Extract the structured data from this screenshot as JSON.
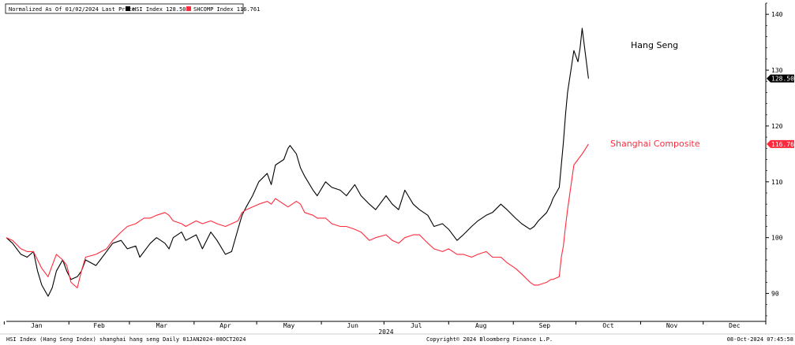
{
  "legend": {
    "prefix": "Normalized As Of 01/02/2024  Last Price",
    "items": [
      {
        "label": "HSI Index  128.50",
        "color": "#000000"
      },
      {
        "label": "SHCOMP Index  116.761",
        "color": "#ff2a3c"
      }
    ]
  },
  "annotations": {
    "hsi": "Hang Seng",
    "shcomp": "Shanghai Composite"
  },
  "footer": {
    "left": "HSI Index (Hang Seng Index) shanghai hang seng  Daily 01JAN2024-08OCT2024",
    "center": "Copyright© 2024 Bloomberg Finance L.P.",
    "right": "08-Oct-2024 07:45:58"
  },
  "chart_data": {
    "type": "line",
    "xlabel": "2024",
    "x_ticks": [
      "Jan",
      "Feb",
      "Mar",
      "Apr",
      "May",
      "Jun",
      "Jul",
      "Aug",
      "Sep",
      "Oct",
      "Nov",
      "Dec"
    ],
    "x_range": [
      "2024-01-02",
      "2024-12-31"
    ],
    "ylim": [
      85,
      142
    ],
    "y_ticks": [
      90,
      100,
      110,
      120,
      130,
      140
    ],
    "y_axis_side": "right",
    "grid": false,
    "legend_position": "top-left",
    "last_value_labels": [
      {
        "value": 128.5,
        "text": "128.50",
        "color": "#000000"
      },
      {
        "value": 116.761,
        "text": "116.761",
        "color": "#ff2a3c"
      }
    ],
    "series": [
      {
        "name": "HSI Index",
        "color": "#000000",
        "points": [
          [
            "2024-01-02",
            100
          ],
          [
            "2024-01-05",
            99
          ],
          [
            "2024-01-09",
            97
          ],
          [
            "2024-01-12",
            96.5
          ],
          [
            "2024-01-15",
            97.5
          ],
          [
            "2024-01-17",
            94
          ],
          [
            "2024-01-19",
            91.5
          ],
          [
            "2024-01-22",
            89.5
          ],
          [
            "2024-01-24",
            91
          ],
          [
            "2024-01-26",
            94
          ],
          [
            "2024-01-29",
            96
          ],
          [
            "2024-01-31",
            94
          ],
          [
            "2024-02-02",
            92.5
          ],
          [
            "2024-02-05",
            93
          ],
          [
            "2024-02-07",
            94
          ],
          [
            "2024-02-09",
            96
          ],
          [
            "2024-02-14",
            95
          ],
          [
            "2024-02-19",
            97.5
          ],
          [
            "2024-02-22",
            99
          ],
          [
            "2024-02-26",
            99.5
          ],
          [
            "2024-02-29",
            98
          ],
          [
            "2024-03-04",
            98.5
          ],
          [
            "2024-03-06",
            96.5
          ],
          [
            "2024-03-08",
            97.5
          ],
          [
            "2024-03-11",
            99
          ],
          [
            "2024-03-14",
            100
          ],
          [
            "2024-03-18",
            99
          ],
          [
            "2024-03-20",
            98
          ],
          [
            "2024-03-22",
            100
          ],
          [
            "2024-03-26",
            101
          ],
          [
            "2024-03-28",
            99.5
          ],
          [
            "2024-04-02",
            100.5
          ],
          [
            "2024-04-05",
            98
          ],
          [
            "2024-04-09",
            101
          ],
          [
            "2024-04-12",
            99.5
          ],
          [
            "2024-04-16",
            97
          ],
          [
            "2024-04-19",
            97.5
          ],
          [
            "2024-04-22",
            101.5
          ],
          [
            "2024-04-24",
            104
          ],
          [
            "2024-04-26",
            105.5
          ],
          [
            "2024-04-29",
            107.5
          ],
          [
            "2024-05-02",
            110
          ],
          [
            "2024-05-06",
            111.5
          ],
          [
            "2024-05-08",
            109.5
          ],
          [
            "2024-05-10",
            113
          ],
          [
            "2024-05-14",
            114
          ],
          [
            "2024-05-16",
            116
          ],
          [
            "2024-05-17",
            116.5
          ],
          [
            "2024-05-20",
            115
          ],
          [
            "2024-05-22",
            112.5
          ],
          [
            "2024-05-24",
            111
          ],
          [
            "2024-05-28",
            108.5
          ],
          [
            "2024-05-30",
            107.5
          ],
          [
            "2024-06-03",
            110
          ],
          [
            "2024-06-06",
            109
          ],
          [
            "2024-06-10",
            108.5
          ],
          [
            "2024-06-13",
            107.5
          ],
          [
            "2024-06-17",
            109.5
          ],
          [
            "2024-06-20",
            107.5
          ],
          [
            "2024-06-24",
            106
          ],
          [
            "2024-06-27",
            105
          ],
          [
            "2024-07-02",
            107.5
          ],
          [
            "2024-07-05",
            106
          ],
          [
            "2024-07-08",
            105
          ],
          [
            "2024-07-11",
            108.5
          ],
          [
            "2024-07-15",
            106
          ],
          [
            "2024-07-18",
            105
          ],
          [
            "2024-07-22",
            104
          ],
          [
            "2024-07-25",
            102
          ],
          [
            "2024-07-29",
            102.5
          ],
          [
            "2024-08-01",
            101.5
          ],
          [
            "2024-08-05",
            99.5
          ],
          [
            "2024-08-08",
            100.5
          ],
          [
            "2024-08-12",
            102
          ],
          [
            "2024-08-15",
            103
          ],
          [
            "2024-08-19",
            104
          ],
          [
            "2024-08-22",
            104.5
          ],
          [
            "2024-08-26",
            106
          ],
          [
            "2024-08-29",
            105
          ],
          [
            "2024-09-02",
            103.5
          ],
          [
            "2024-09-05",
            102.5
          ],
          [
            "2024-09-09",
            101.5
          ],
          [
            "2024-09-11",
            102
          ],
          [
            "2024-09-13",
            103
          ],
          [
            "2024-09-17",
            104.5
          ],
          [
            "2024-09-19",
            106
          ],
          [
            "2024-09-20",
            107
          ],
          [
            "2024-09-23",
            109
          ],
          [
            "2024-09-24",
            113
          ],
          [
            "2024-09-25",
            117
          ],
          [
            "2024-09-26",
            122
          ],
          [
            "2024-09-27",
            126
          ],
          [
            "2024-09-30",
            133.5
          ],
          [
            "2024-10-02",
            131.5
          ],
          [
            "2024-10-03",
            134
          ],
          [
            "2024-10-04",
            137.5
          ],
          [
            "2024-10-07",
            128.5
          ]
        ]
      },
      {
        "name": "SHCOMP Index",
        "color": "#ff2a3c",
        "points": [
          [
            "2024-01-02",
            100
          ],
          [
            "2024-01-05",
            99.5
          ],
          [
            "2024-01-09",
            98
          ],
          [
            "2024-01-12",
            97.5
          ],
          [
            "2024-01-15",
            97.5
          ],
          [
            "2024-01-17",
            96
          ],
          [
            "2024-01-19",
            94.5
          ],
          [
            "2024-01-22",
            93
          ],
          [
            "2024-01-24",
            95
          ],
          [
            "2024-01-26",
            97
          ],
          [
            "2024-01-29",
            96
          ],
          [
            "2024-01-31",
            95
          ],
          [
            "2024-02-02",
            92
          ],
          [
            "2024-02-05",
            91
          ],
          [
            "2024-02-07",
            94
          ],
          [
            "2024-02-09",
            96.5
          ],
          [
            "2024-02-14",
            97
          ],
          [
            "2024-02-19",
            98
          ],
          [
            "2024-02-22",
            99.5
          ],
          [
            "2024-02-26",
            101
          ],
          [
            "2024-02-29",
            102
          ],
          [
            "2024-03-04",
            102.5
          ],
          [
            "2024-03-06",
            103
          ],
          [
            "2024-03-08",
            103.5
          ],
          [
            "2024-03-11",
            103.5
          ],
          [
            "2024-03-14",
            104
          ],
          [
            "2024-03-18",
            104.5
          ],
          [
            "2024-03-20",
            104
          ],
          [
            "2024-03-22",
            103
          ],
          [
            "2024-03-26",
            102.5
          ],
          [
            "2024-03-28",
            102
          ],
          [
            "2024-04-02",
            103
          ],
          [
            "2024-04-05",
            102.5
          ],
          [
            "2024-04-09",
            103
          ],
          [
            "2024-04-12",
            102.5
          ],
          [
            "2024-04-16",
            102
          ],
          [
            "2024-04-19",
            102.5
          ],
          [
            "2024-04-22",
            103
          ],
          [
            "2024-04-24",
            104.5
          ],
          [
            "2024-04-26",
            105
          ],
          [
            "2024-04-29",
            105.5
          ],
          [
            "2024-05-02",
            106
          ],
          [
            "2024-05-06",
            106.5
          ],
          [
            "2024-05-08",
            106
          ],
          [
            "2024-05-10",
            107
          ],
          [
            "2024-05-14",
            106
          ],
          [
            "2024-05-16",
            105.5
          ],
          [
            "2024-05-20",
            106.5
          ],
          [
            "2024-05-22",
            106
          ],
          [
            "2024-05-24",
            104.5
          ],
          [
            "2024-05-28",
            104
          ],
          [
            "2024-05-30",
            103.5
          ],
          [
            "2024-06-03",
            103.5
          ],
          [
            "2024-06-06",
            102.5
          ],
          [
            "2024-06-10",
            102
          ],
          [
            "2024-06-13",
            102
          ],
          [
            "2024-06-17",
            101.5
          ],
          [
            "2024-06-20",
            101
          ],
          [
            "2024-06-24",
            99.5
          ],
          [
            "2024-06-27",
            100
          ],
          [
            "2024-07-02",
            100.5
          ],
          [
            "2024-07-05",
            99.5
          ],
          [
            "2024-07-08",
            99
          ],
          [
            "2024-07-11",
            100
          ],
          [
            "2024-07-15",
            100.5
          ],
          [
            "2024-07-18",
            100.5
          ],
          [
            "2024-07-22",
            99
          ],
          [
            "2024-07-25",
            98
          ],
          [
            "2024-07-29",
            97.5
          ],
          [
            "2024-08-01",
            98
          ],
          [
            "2024-08-05",
            97
          ],
          [
            "2024-08-08",
            97
          ],
          [
            "2024-08-12",
            96.5
          ],
          [
            "2024-08-15",
            97
          ],
          [
            "2024-08-19",
            97.5
          ],
          [
            "2024-08-22",
            96.5
          ],
          [
            "2024-08-26",
            96.5
          ],
          [
            "2024-08-29",
            95.5
          ],
          [
            "2024-09-02",
            94.5
          ],
          [
            "2024-09-05",
            93.5
          ],
          [
            "2024-09-09",
            92
          ],
          [
            "2024-09-11",
            91.5
          ],
          [
            "2024-09-13",
            91.5
          ],
          [
            "2024-09-17",
            92
          ],
          [
            "2024-09-19",
            92.5
          ],
          [
            "2024-09-20",
            92.5
          ],
          [
            "2024-09-23",
            93
          ],
          [
            "2024-09-24",
            96.5
          ],
          [
            "2024-09-25",
            98.5
          ],
          [
            "2024-09-26",
            102
          ],
          [
            "2024-09-27",
            105
          ],
          [
            "2024-09-30",
            113
          ],
          [
            "2024-10-02",
            114
          ],
          [
            "2024-10-04",
            115
          ],
          [
            "2024-10-07",
            116.761
          ]
        ]
      }
    ]
  }
}
